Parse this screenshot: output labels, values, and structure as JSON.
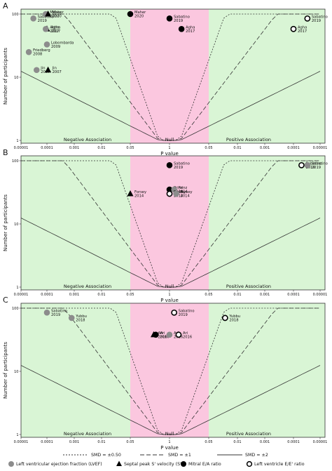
{
  "figure": {
    "xlabel": "P value",
    "ylabel": "Number of participants",
    "x_ticks": [
      "0.00001",
      "0.0001",
      "0.001",
      "0.01",
      "0.05",
      "1",
      "0.05",
      "0.01",
      "0.001",
      "0.0001",
      "0.00001"
    ],
    "y_ticks": [
      "1",
      "10",
      "100"
    ],
    "regions": {
      "negative": "Negative Association",
      "null": "Null",
      "positive": "Positive Association"
    },
    "colors": {
      "negative_region": "#d9f5d5",
      "null_region": "#fbc7df",
      "positive_region": "#d9f5d5",
      "ef_marker": "#8c8c8c",
      "black_marker": "#000000"
    }
  },
  "legend": {
    "lines": [
      {
        "style": "short-dash",
        "label": "SMD = ±0.50"
      },
      {
        "style": "long-dash",
        "label": "SMD = ±1"
      },
      {
        "style": "solid",
        "label": "SMD = ±2"
      }
    ],
    "markers": [
      {
        "shape": "gray-circle",
        "label": "Left ventricular ejection fraction (LVEF)"
      },
      {
        "shape": "black-triangle",
        "label": "Septal peak S' velocity (S')"
      },
      {
        "shape": "black-circle",
        "label": "Mitral E/A ratio"
      },
      {
        "shape": "open-circle",
        "label": "Left ventricle E/E' ratio"
      }
    ]
  },
  "chart_data": [
    {
      "type": "scatter",
      "panel": "A",
      "xlabel": "P value",
      "ylabel": "Number of participants",
      "x_scale": "signed -log10(p), negative association left, positive right",
      "y_scale": "log",
      "ylim": [
        1,
        120
      ],
      "points": [
        {
          "label": "Sabatino 2019",
          "measure": "LVEF",
          "direction": "negative",
          "p": 3e-05,
          "n": 85
        },
        {
          "label": "Maher 2020",
          "measure": "LVEF",
          "direction": "negative",
          "p": 9e-05,
          "n": 100
        },
        {
          "label": "Maher 2020",
          "measure": "S'",
          "direction": "negative",
          "p": 0.00011,
          "n": 100
        },
        {
          "label": "Agha 2017",
          "measure": "S'",
          "direction": "negative",
          "p": 0.0001,
          "n": 58
        },
        {
          "label": "Agha 2017",
          "measure": "LVEF",
          "direction": "negative",
          "p": 9e-05,
          "n": 58
        },
        {
          "label": "Lobombarda 2009",
          "measure": "LVEF",
          "direction": "negative",
          "p": 0.0001,
          "n": 33
        },
        {
          "label": "Friedberg 2008",
          "measure": "LVEF",
          "direction": "negative",
          "p": 2e-05,
          "n": 25
        },
        {
          "label": "Jin 2007",
          "measure": "LVEF",
          "direction": "negative",
          "p": 4e-05,
          "n": 13
        },
        {
          "label": "Jin 2007",
          "measure": "S'",
          "direction": "negative",
          "p": 0.00011,
          "n": 13
        },
        {
          "label": "Maher 2020",
          "measure": "E/A",
          "direction": "negative",
          "p": 0.05,
          "n": 100
        },
        {
          "label": "Sabatino 2019",
          "measure": "E/A",
          "direction": "null",
          "p": 1,
          "n": 85
        },
        {
          "label": "Agha 2017",
          "measure": "E/A",
          "direction": "positive",
          "p": 0.4,
          "n": 58
        },
        {
          "label": "Sabatino 2019",
          "measure": "E/E'",
          "direction": "positive",
          "p": 3e-05,
          "n": 85
        },
        {
          "label": "Agha 2017",
          "measure": "E/E'",
          "direction": "positive",
          "p": 0.0001,
          "n": 58
        }
      ]
    },
    {
      "type": "scatter",
      "panel": "B",
      "xlabel": "P value",
      "ylabel": "Number of participants",
      "x_scale": "signed -log10(p), negative association left, positive right",
      "y_scale": "log",
      "ylim": [
        1,
        120
      ],
      "points": [
        {
          "label": "Sabatino 2019",
          "measure": "E/A",
          "direction": "null",
          "p": 1,
          "n": 85
        },
        {
          "label": "Sabatino 2019",
          "measure": "E/E'",
          "direction": "positive",
          "p": 5e-05,
          "n": 85
        },
        {
          "label": "Sabatino 2019",
          "measure": "LVEF",
          "direction": "positive",
          "p": 3e-05,
          "n": 85
        },
        {
          "label": "Prinz 2014",
          "measure": "E/A",
          "direction": "null",
          "p": 0.7,
          "n": 35
        },
        {
          "label": "Prinz 2014",
          "measure": "LVEF",
          "direction": "positive",
          "p": 0.7,
          "n": 35
        },
        {
          "label": "Forsey 2014",
          "measure": "S'",
          "direction": "negative",
          "p": 0.05,
          "n": 30
        },
        {
          "label": "Forsey 2014",
          "measure": "E/E'",
          "direction": "null",
          "p": 0.8,
          "n": 30
        },
        {
          "label": "Forsey 2014",
          "measure": "LVEF",
          "direction": "positive",
          "p": 0.6,
          "n": 30
        }
      ]
    },
    {
      "type": "scatter",
      "panel": "C",
      "xlabel": "P value",
      "ylabel": "Number of participants",
      "x_scale": "signed -log10(p), negative association left, positive right",
      "y_scale": "log",
      "ylim": [
        1,
        120
      ],
      "points": [
        {
          "label": "Sabatino 2019",
          "measure": "LVEF",
          "direction": "negative",
          "p": 0.0001,
          "n": 85
        },
        {
          "label": "Yubbu 2018",
          "measure": "LVEF",
          "direction": "negative",
          "p": 0.0008,
          "n": 70
        },
        {
          "label": "Sabatino 2019",
          "measure": "E/E'",
          "direction": "positive",
          "p": 0.7,
          "n": 85
        },
        {
          "label": "Yubbu 2018",
          "measure": "E/E'",
          "direction": "positive",
          "p": 0.02,
          "n": 70
        },
        {
          "label": "Ari 2016",
          "measure": "S'",
          "direction": "negative",
          "p": 0.3,
          "n": 38
        },
        {
          "label": "Ari 2016",
          "measure": "E/A",
          "direction": "negative",
          "p": 0.35,
          "n": 38
        },
        {
          "label": "Ari 2016",
          "measure": "LVEF",
          "direction": "null",
          "p": 0.8,
          "n": 38
        },
        {
          "label": "Ari 2016",
          "measure": "E/E'",
          "direction": "positive",
          "p": 0.5,
          "n": 38
        }
      ]
    }
  ]
}
